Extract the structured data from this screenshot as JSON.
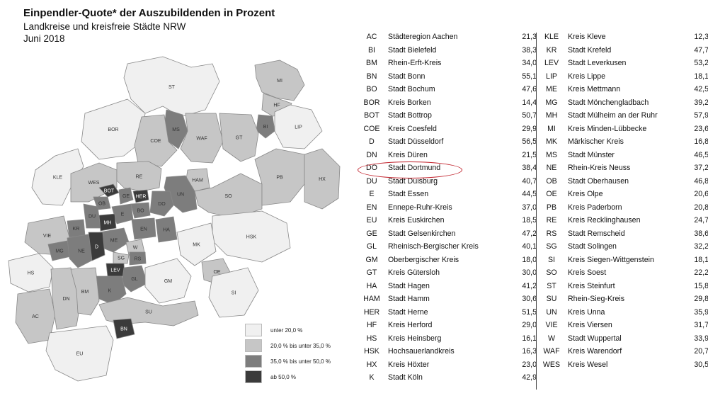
{
  "header": {
    "title": "Einpendler-Quote* der Auszubildenden in Prozent",
    "subtitle": "Landkreise und kreisfreie Städte NRW",
    "date": "Juni 2018"
  },
  "colors": {
    "under_20": "#f0f0f0",
    "from_20_to_35": "#c6c6c6",
    "from_35_to_50": "#7d7d7d",
    "from_50": "#3b3b3b",
    "highlight": "#c0202a"
  },
  "legend": [
    {
      "label": "unter 20,0 %",
      "color": "#f0f0f0"
    },
    {
      "label": "20,0 % bis unter 35,0 %",
      "color": "#c6c6c6"
    },
    {
      "label": "35,0 % bis unter 50,0 %",
      "color": "#7d7d7d"
    },
    {
      "label": "ab 50,0 %",
      "color": "#3b3b3b"
    }
  ],
  "map_labels": [
    "ST",
    "MI",
    "HF",
    "BI",
    "LIP",
    "BOR",
    "MS",
    "GT",
    "COE",
    "WAF",
    "KLE",
    "WES",
    "RE",
    "HAM",
    "PB",
    "HX",
    "BOT",
    "GE",
    "HER",
    "OB",
    "DU",
    "BO",
    "DO",
    "UN",
    "SO",
    "E",
    "MH",
    "KR",
    "EN",
    "HA",
    "VIE",
    "ME",
    "W",
    "MG",
    "NE",
    "D",
    "SG",
    "RS",
    "HSK",
    "MK",
    "OE",
    "LEV",
    "GL",
    "HS",
    "K",
    "GM",
    "AC",
    "DN",
    "BM",
    "SI",
    "SU",
    "BN",
    "EU"
  ],
  "highlight": {
    "code": "DO",
    "name": "Stadt Dortmund"
  },
  "table": {
    "left": [
      {
        "code": "AC",
        "name": "Städteregion Aachen",
        "value": "21,3"
      },
      {
        "code": "BI",
        "name": "Stadt Bielefeld",
        "value": "38,3"
      },
      {
        "code": "BM",
        "name": "Rhein-Erft-Kreis",
        "value": "34,0"
      },
      {
        "code": "BN",
        "name": "Stadt Bonn",
        "value": "55,1"
      },
      {
        "code": "BO",
        "name": "Stadt Bochum",
        "value": "47,6"
      },
      {
        "code": "BOR",
        "name": "Kreis Borken",
        "value": "14,4"
      },
      {
        "code": "BOT",
        "name": "Stadt Bottrop",
        "value": "50,7"
      },
      {
        "code": "COE",
        "name": "Kreis Coesfeld",
        "value": "29,9"
      },
      {
        "code": "D",
        "name": "Stadt Düsseldorf",
        "value": "56,5"
      },
      {
        "code": "DN",
        "name": "Kreis Düren",
        "value": "21,5"
      },
      {
        "code": "DO",
        "name": "Stadt Dortmund",
        "value": "38,4"
      },
      {
        "code": "DU",
        "name": "Stadt Duisburg",
        "value": "40,7"
      },
      {
        "code": "E",
        "name": "Stadt Essen",
        "value": "44,5"
      },
      {
        "code": "EN",
        "name": "Ennepe-Ruhr-Kreis",
        "value": "37,0"
      },
      {
        "code": "EU",
        "name": "Kreis Euskirchen",
        "value": "18,5"
      },
      {
        "code": "GE",
        "name": "Stadt Gelsenkirchen",
        "value": "47,2"
      },
      {
        "code": "GL",
        "name": "Rheinisch-Bergischer Kreis",
        "value": "40,1"
      },
      {
        "code": "GM",
        "name": "Oberbergischer Kreis",
        "value": "18,0"
      },
      {
        "code": "GT",
        "name": "Kreis Gütersloh",
        "value": "30,0"
      },
      {
        "code": "HA",
        "name": "Stadt Hagen",
        "value": "41,2"
      },
      {
        "code": "HAM",
        "name": "Stadt Hamm",
        "value": "30,6"
      },
      {
        "code": "HER",
        "name": "Stadt Herne",
        "value": "51,5"
      },
      {
        "code": "HF",
        "name": "Kreis Herford",
        "value": "29,0"
      },
      {
        "code": "HS",
        "name": "Kreis Heinsberg",
        "value": "16,1"
      },
      {
        "code": "HSK",
        "name": "Hochsauerlandkreis",
        "value": "16,3"
      },
      {
        "code": "HX",
        "name": "Kreis Höxter",
        "value": "23,0"
      },
      {
        "code": "K",
        "name": "Stadt Köln",
        "value": "42,9"
      }
    ],
    "right": [
      {
        "code": "KLE",
        "name": "Kreis Kleve",
        "value": "12,3"
      },
      {
        "code": "KR",
        "name": "Stadt Krefeld",
        "value": "47,7"
      },
      {
        "code": "LEV",
        "name": "Stadt Leverkusen",
        "value": "53,2"
      },
      {
        "code": "LIP",
        "name": "Kreis Lippe",
        "value": "18,1"
      },
      {
        "code": "ME",
        "name": "Kreis Mettmann",
        "value": "42,5"
      },
      {
        "code": "MG",
        "name": "Stadt Mönchengladbach",
        "value": "39,2"
      },
      {
        "code": "MH",
        "name": "Stadt Mülheim an der Ruhr",
        "value": "57,9"
      },
      {
        "code": "MI",
        "name": "Kreis Minden-Lübbecke",
        "value": "23,6"
      },
      {
        "code": "MK",
        "name": "Märkischer Kreis",
        "value": "16,8"
      },
      {
        "code": "MS",
        "name": "Stadt Münster",
        "value": "46,5"
      },
      {
        "code": "NE",
        "name": "Rhein-Kreis Neuss",
        "value": "37,2"
      },
      {
        "code": "OB",
        "name": "Stadt Oberhausen",
        "value": "46,8"
      },
      {
        "code": "OE",
        "name": "Kreis Olpe",
        "value": "20,6"
      },
      {
        "code": "PB",
        "name": "Kreis Paderborn",
        "value": "20,8"
      },
      {
        "code": "RE",
        "name": "Kreis Recklinghausen",
        "value": "24,7"
      },
      {
        "code": "RS",
        "name": "Stadt Remscheid",
        "value": "38,6"
      },
      {
        "code": "SG",
        "name": "Stadt Solingen",
        "value": "32,2"
      },
      {
        "code": "SI",
        "name": "Kreis Siegen-Wittgenstein",
        "value": "18,1"
      },
      {
        "code": "SO",
        "name": "Kreis Soest",
        "value": "22,2"
      },
      {
        "code": "ST",
        "name": "Kreis Steinfurt",
        "value": "15,8"
      },
      {
        "code": "SU",
        "name": "Rhein-Sieg-Kreis",
        "value": "29,8"
      },
      {
        "code": "UN",
        "name": "Kreis Unna",
        "value": "35,9"
      },
      {
        "code": "VIE",
        "name": "Kreis Viersen",
        "value": "31,7"
      },
      {
        "code": "W",
        "name": "Stadt Wuppertal",
        "value": "33,9"
      },
      {
        "code": "WAF",
        "name": "Kreis Warendorf",
        "value": "20,7"
      },
      {
        "code": "WES",
        "name": "Kreis Wesel",
        "value": "30,5"
      }
    ]
  }
}
